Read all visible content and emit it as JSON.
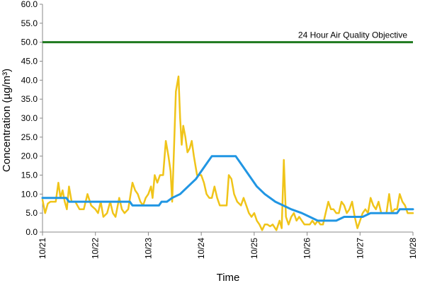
{
  "chart_data": {
    "type": "line",
    "title": "",
    "xlabel": "Time",
    "ylabel": "Concentration (µg/m³)",
    "ylim": [
      0,
      60
    ],
    "xlim": [
      "10/21",
      "10/28"
    ],
    "grid": false,
    "y_ticks": [
      "0.0",
      "5.0",
      "10.0",
      "15.0",
      "20.0",
      "25.0",
      "30.0",
      "35.0",
      "40.0",
      "45.0",
      "50.0",
      "55.0",
      "60.0"
    ],
    "x_ticks": [
      "10/21",
      "10/22",
      "10/23",
      "10/24",
      "10/25",
      "10/26",
      "10/27",
      "10/28"
    ],
    "reference_line": {
      "value": 50,
      "label": "24 Hour Air Quality Objective",
      "color": "#1f7a1f"
    },
    "series": [
      {
        "color": "#f0c419",
        "points": [
          [
            0.0,
            8.5
          ],
          [
            0.05,
            5.0
          ],
          [
            0.1,
            7.5
          ],
          [
            0.15,
            8.0
          ],
          [
            0.25,
            8.0
          ],
          [
            0.3,
            13.0
          ],
          [
            0.34,
            9.0
          ],
          [
            0.38,
            11.0
          ],
          [
            0.42,
            8.0
          ],
          [
            0.46,
            6.0
          ],
          [
            0.5,
            12.0
          ],
          [
            0.55,
            8.0
          ],
          [
            0.62,
            8.0
          ],
          [
            0.7,
            6.0
          ],
          [
            0.78,
            6.0
          ],
          [
            0.85,
            10.0
          ],
          [
            0.92,
            7.0
          ],
          [
            1.0,
            6.0
          ],
          [
            1.05,
            5.0
          ],
          [
            1.1,
            8.0
          ],
          [
            1.15,
            4.0
          ],
          [
            1.22,
            5.0
          ],
          [
            1.28,
            8.0
          ],
          [
            1.33,
            5.0
          ],
          [
            1.38,
            4.0
          ],
          [
            1.45,
            9.0
          ],
          [
            1.5,
            6.0
          ],
          [
            1.55,
            5.0
          ],
          [
            1.62,
            6.0
          ],
          [
            1.7,
            13.0
          ],
          [
            1.75,
            11.0
          ],
          [
            1.8,
            10.0
          ],
          [
            1.85,
            8.0
          ],
          [
            1.9,
            7.0
          ],
          [
            1.95,
            9.0
          ],
          [
            2.0,
            10.0
          ],
          [
            2.05,
            12.0
          ],
          [
            2.08,
            9.0
          ],
          [
            2.12,
            15.0
          ],
          [
            2.17,
            13.0
          ],
          [
            2.22,
            15.0
          ],
          [
            2.28,
            15.0
          ],
          [
            2.33,
            24.0
          ],
          [
            2.38,
            20.0
          ],
          [
            2.42,
            16.0
          ],
          [
            2.45,
            8.0
          ],
          [
            2.48,
            20.0
          ],
          [
            2.52,
            37.0
          ],
          [
            2.57,
            41.0
          ],
          [
            2.6,
            30.0
          ],
          [
            2.63,
            23.0
          ],
          [
            2.66,
            28.0
          ],
          [
            2.7,
            25.0
          ],
          [
            2.74,
            21.0
          ],
          [
            2.78,
            22.0
          ],
          [
            2.82,
            24.0
          ],
          [
            2.86,
            20.0
          ],
          [
            2.92,
            15.0
          ],
          [
            3.0,
            15.0
          ],
          [
            3.05,
            13.0
          ],
          [
            3.1,
            10.0
          ],
          [
            3.15,
            9.0
          ],
          [
            3.2,
            9.0
          ],
          [
            3.25,
            12.0
          ],
          [
            3.3,
            9.0
          ],
          [
            3.35,
            7.0
          ],
          [
            3.42,
            7.0
          ],
          [
            3.48,
            7.0
          ],
          [
            3.52,
            15.0
          ],
          [
            3.57,
            14.0
          ],
          [
            3.62,
            10.0
          ],
          [
            3.68,
            8.0
          ],
          [
            3.75,
            7.0
          ],
          [
            3.8,
            9.0
          ],
          [
            3.85,
            7.0
          ],
          [
            3.9,
            5.0
          ],
          [
            3.95,
            4.0
          ],
          [
            4.0,
            5.0
          ],
          [
            4.05,
            3.0
          ],
          [
            4.1,
            2.0
          ],
          [
            4.15,
            0.5
          ],
          [
            4.2,
            2.0
          ],
          [
            4.25,
            2.0
          ],
          [
            4.3,
            1.5
          ],
          [
            4.35,
            2.0
          ],
          [
            4.42,
            0.5
          ],
          [
            4.48,
            3.0
          ],
          [
            4.52,
            1.0
          ],
          [
            4.56,
            19.0
          ],
          [
            4.6,
            4.0
          ],
          [
            4.65,
            2.0
          ],
          [
            4.7,
            4.0
          ],
          [
            4.75,
            5.0
          ],
          [
            4.8,
            3.0
          ],
          [
            4.85,
            4.0
          ],
          [
            4.9,
            3.0
          ],
          [
            4.95,
            2.0
          ],
          [
            5.0,
            2.0
          ],
          [
            5.05,
            2.0
          ],
          [
            5.1,
            3.0
          ],
          [
            5.15,
            2.0
          ],
          [
            5.2,
            3.0
          ],
          [
            5.25,
            2.0
          ],
          [
            5.3,
            2.0
          ],
          [
            5.35,
            5.0
          ],
          [
            5.4,
            8.0
          ],
          [
            5.45,
            6.0
          ],
          [
            5.5,
            6.0
          ],
          [
            5.55,
            5.0
          ],
          [
            5.6,
            5.0
          ],
          [
            5.65,
            8.0
          ],
          [
            5.7,
            7.0
          ],
          [
            5.75,
            5.0
          ],
          [
            5.8,
            6.0
          ],
          [
            5.85,
            8.0
          ],
          [
            5.9,
            4.0
          ],
          [
            5.95,
            1.0
          ],
          [
            6.0,
            3.0
          ],
          [
            6.05,
            5.0
          ],
          [
            6.1,
            6.0
          ],
          [
            6.15,
            5.0
          ],
          [
            6.2,
            9.0
          ],
          [
            6.25,
            7.0
          ],
          [
            6.3,
            6.0
          ],
          [
            6.35,
            8.0
          ],
          [
            6.4,
            5.0
          ],
          [
            6.45,
            5.0
          ],
          [
            6.5,
            5.0
          ],
          [
            6.55,
            10.0
          ],
          [
            6.6,
            5.0
          ],
          [
            6.65,
            6.0
          ],
          [
            6.7,
            6.0
          ],
          [
            6.75,
            10.0
          ],
          [
            6.8,
            8.0
          ],
          [
            6.85,
            7.0
          ],
          [
            6.9,
            5.0
          ],
          [
            7.0,
            5.0
          ]
        ]
      },
      {
        "color": "#2196e3",
        "points": [
          [
            0.0,
            9.0
          ],
          [
            0.45,
            9.0
          ],
          [
            0.5,
            8.0
          ],
          [
            1.65,
            8.0
          ],
          [
            1.7,
            7.0
          ],
          [
            2.2,
            7.0
          ],
          [
            2.25,
            8.0
          ],
          [
            2.35,
            8.0
          ],
          [
            2.45,
            9.0
          ],
          [
            2.6,
            10.0
          ],
          [
            2.75,
            12.0
          ],
          [
            2.9,
            14.0
          ],
          [
            3.0,
            16.0
          ],
          [
            3.1,
            18.0
          ],
          [
            3.2,
            20.0
          ],
          [
            3.65,
            20.0
          ],
          [
            3.75,
            18.0
          ],
          [
            3.9,
            15.0
          ],
          [
            4.05,
            12.0
          ],
          [
            4.2,
            10.0
          ],
          [
            4.4,
            8.0
          ],
          [
            4.7,
            6.0
          ],
          [
            4.9,
            5.0
          ],
          [
            5.05,
            4.0
          ],
          [
            5.2,
            3.0
          ],
          [
            5.55,
            3.0
          ],
          [
            5.7,
            4.0
          ],
          [
            6.05,
            4.0
          ],
          [
            6.2,
            5.0
          ],
          [
            6.7,
            5.0
          ],
          [
            6.75,
            6.0
          ],
          [
            7.0,
            6.0
          ]
        ]
      }
    ]
  }
}
